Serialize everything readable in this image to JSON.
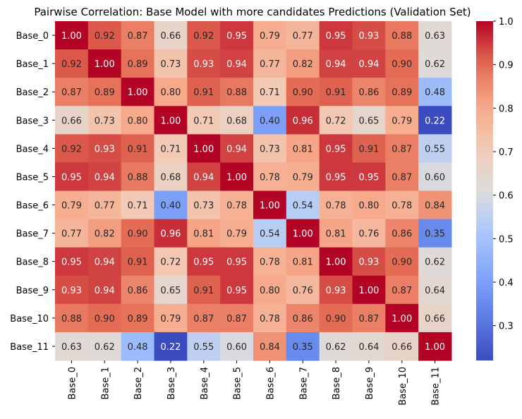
{
  "chart_data": {
    "type": "heatmap",
    "title": "Pairwise Correlation: Base Model with more candidates Predictions (Validation Set)",
    "xlabel": "",
    "ylabel": "",
    "labels": [
      "Base_0",
      "Base_1",
      "Base_2",
      "Base_3",
      "Base_4",
      "Base_5",
      "Base_6",
      "Base_7",
      "Base_8",
      "Base_9",
      "Base_10",
      "Base_11"
    ],
    "values": [
      [
        1.0,
        0.92,
        0.87,
        0.66,
        0.92,
        0.95,
        0.79,
        0.77,
        0.95,
        0.93,
        0.88,
        0.63
      ],
      [
        0.92,
        1.0,
        0.89,
        0.73,
        0.93,
        0.94,
        0.77,
        0.82,
        0.94,
        0.94,
        0.9,
        0.62
      ],
      [
        0.87,
        0.89,
        1.0,
        0.8,
        0.91,
        0.88,
        0.71,
        0.9,
        0.91,
        0.86,
        0.89,
        0.48
      ],
      [
        0.66,
        0.73,
        0.8,
        1.0,
        0.71,
        0.68,
        0.4,
        0.96,
        0.72,
        0.65,
        0.79,
        0.22
      ],
      [
        0.92,
        0.93,
        0.91,
        0.71,
        1.0,
        0.94,
        0.73,
        0.81,
        0.95,
        0.91,
        0.87,
        0.55
      ],
      [
        0.95,
        0.94,
        0.88,
        0.68,
        0.94,
        1.0,
        0.78,
        0.79,
        0.95,
        0.95,
        0.87,
        0.6
      ],
      [
        0.79,
        0.77,
        0.71,
        0.4,
        0.73,
        0.78,
        1.0,
        0.54,
        0.78,
        0.8,
        0.78,
        0.84
      ],
      [
        0.77,
        0.82,
        0.9,
        0.96,
        0.81,
        0.79,
        0.54,
        1.0,
        0.81,
        0.76,
        0.86,
        0.35
      ],
      [
        0.95,
        0.94,
        0.91,
        0.72,
        0.95,
        0.95,
        0.78,
        0.81,
        1.0,
        0.93,
        0.9,
        0.62
      ],
      [
        0.93,
        0.94,
        0.86,
        0.65,
        0.91,
        0.95,
        0.8,
        0.76,
        0.93,
        1.0,
        0.87,
        0.64
      ],
      [
        0.88,
        0.9,
        0.89,
        0.79,
        0.87,
        0.87,
        0.78,
        0.86,
        0.9,
        0.87,
        1.0,
        0.66
      ],
      [
        0.63,
        0.62,
        0.48,
        0.22,
        0.55,
        0.6,
        0.84,
        0.35,
        0.62,
        0.64,
        0.66,
        1.0
      ]
    ],
    "colormap": "coolwarm",
    "vmin": 0.22,
    "vmax": 1.0,
    "colorbar_ticks": [
      "0.3",
      "0.4",
      "0.5",
      "0.6",
      "0.7",
      "0.8",
      "0.9",
      "1.0"
    ],
    "annotated": true,
    "grid": false
  }
}
